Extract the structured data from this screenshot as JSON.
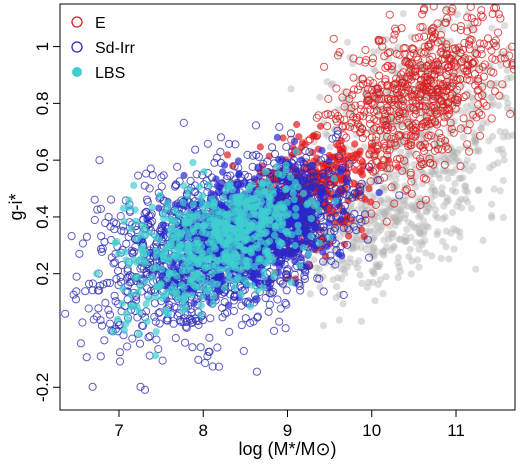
{
  "chart_data": {
    "type": "scatter",
    "xlabel": "log (M*/M⊙)",
    "ylabel": "g-i*",
    "xlim": [
      6.3,
      11.7
    ],
    "ylim": [
      -0.28,
      1.15
    ],
    "x_ticks": [
      7,
      8,
      9,
      10,
      11
    ],
    "y_ticks": [
      -0.2,
      0.2,
      0.4,
      0.6,
      0.8,
      1
    ],
    "y_tick_labels": [
      "-0.2",
      "0.2",
      "0.4",
      "0.6",
      "0.8",
      "1"
    ],
    "grid": false,
    "legend_position": "top-left",
    "series": [
      {
        "name": "",
        "color": "#b4b4b4",
        "marker": "filled-circle",
        "cloud": {
          "count": 900,
          "cx": [
            10.6,
            10.0,
            10.7
          ],
          "cy": [
            0.55,
            0.35,
            0.85
          ],
          "sx": [
            0.7,
            0.5,
            0.6
          ],
          "sy": [
            0.14,
            0.1,
            0.12
          ]
        }
      },
      {
        "name": "E",
        "color": "#d42020",
        "marker": "open-circle",
        "cloud": {
          "count": 750,
          "cx": [
            10.8,
            10.3
          ],
          "cy": [
            0.9,
            0.75
          ],
          "sx": [
            0.45,
            0.45
          ],
          "sy": [
            0.12,
            0.13
          ]
        }
      },
      {
        "name": "",
        "color": "#e41a1c",
        "marker": "filled-circle",
        "cloud": {
          "count": 420,
          "cx": [
            9.3,
            9.0
          ],
          "cy": [
            0.5,
            0.45
          ],
          "sx": [
            0.35,
            0.4
          ],
          "sy": [
            0.09,
            0.1
          ]
        }
      },
      {
        "name": "Sd-Irr",
        "color": "#2a2ab4",
        "marker": "open-circle",
        "cloud": {
          "count": 1700,
          "cx": [
            8.3,
            7.7,
            9.0
          ],
          "cy": [
            0.3,
            0.25,
            0.4
          ],
          "sx": [
            0.6,
            0.55,
            0.35
          ],
          "sy": [
            0.14,
            0.16,
            0.1
          ]
        }
      },
      {
        "name": "",
        "color": "#2727d0",
        "marker": "filled-circle",
        "cloud": {
          "count": 700,
          "cx": [
            8.7,
            8.3
          ],
          "cy": [
            0.38,
            0.32
          ],
          "sx": [
            0.45,
            0.45
          ],
          "sy": [
            0.09,
            0.09
          ]
        }
      },
      {
        "name": "LBS",
        "color": "#3ecfd0",
        "marker": "filled-circle",
        "cloud": {
          "count": 650,
          "cx": [
            8.3,
            8.6,
            7.7
          ],
          "cy": [
            0.32,
            0.38,
            0.28
          ],
          "sx": [
            0.4,
            0.35,
            0.45
          ],
          "sy": [
            0.1,
            0.08,
            0.12
          ]
        }
      }
    ],
    "legend": [
      {
        "label": "E",
        "color": "#d42020",
        "marker": "open-circle"
      },
      {
        "label": "Sd-Irr",
        "color": "#2a2ab4",
        "marker": "open-circle"
      },
      {
        "label": "LBS",
        "color": "#3ecfd0",
        "marker": "filled-circle"
      }
    ]
  }
}
